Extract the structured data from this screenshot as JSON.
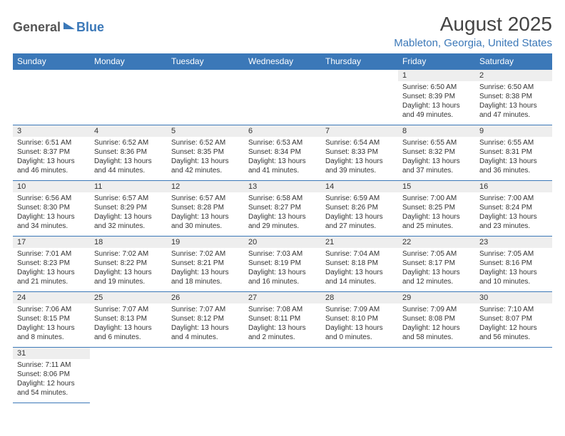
{
  "logo": {
    "general": "General",
    "blue": "Blue"
  },
  "title": "August 2025",
  "location": "Mableton, Georgia, United States",
  "colors": {
    "header_bg": "#3b78b8",
    "header_text": "#ffffff",
    "daynum_bg": "#eeeeee",
    "border": "#3b78b8",
    "text": "#333333",
    "location_color": "#3b78b8"
  },
  "weekdays": [
    "Sunday",
    "Monday",
    "Tuesday",
    "Wednesday",
    "Thursday",
    "Friday",
    "Saturday"
  ],
  "weeks": [
    [
      null,
      null,
      null,
      null,
      null,
      {
        "n": "1",
        "sr": "Sunrise: 6:50 AM",
        "ss": "Sunset: 8:39 PM",
        "d1": "Daylight: 13 hours",
        "d2": "and 49 minutes."
      },
      {
        "n": "2",
        "sr": "Sunrise: 6:50 AM",
        "ss": "Sunset: 8:38 PM",
        "d1": "Daylight: 13 hours",
        "d2": "and 47 minutes."
      }
    ],
    [
      {
        "n": "3",
        "sr": "Sunrise: 6:51 AM",
        "ss": "Sunset: 8:37 PM",
        "d1": "Daylight: 13 hours",
        "d2": "and 46 minutes."
      },
      {
        "n": "4",
        "sr": "Sunrise: 6:52 AM",
        "ss": "Sunset: 8:36 PM",
        "d1": "Daylight: 13 hours",
        "d2": "and 44 minutes."
      },
      {
        "n": "5",
        "sr": "Sunrise: 6:52 AM",
        "ss": "Sunset: 8:35 PM",
        "d1": "Daylight: 13 hours",
        "d2": "and 42 minutes."
      },
      {
        "n": "6",
        "sr": "Sunrise: 6:53 AM",
        "ss": "Sunset: 8:34 PM",
        "d1": "Daylight: 13 hours",
        "d2": "and 41 minutes."
      },
      {
        "n": "7",
        "sr": "Sunrise: 6:54 AM",
        "ss": "Sunset: 8:33 PM",
        "d1": "Daylight: 13 hours",
        "d2": "and 39 minutes."
      },
      {
        "n": "8",
        "sr": "Sunrise: 6:55 AM",
        "ss": "Sunset: 8:32 PM",
        "d1": "Daylight: 13 hours",
        "d2": "and 37 minutes."
      },
      {
        "n": "9",
        "sr": "Sunrise: 6:55 AM",
        "ss": "Sunset: 8:31 PM",
        "d1": "Daylight: 13 hours",
        "d2": "and 36 minutes."
      }
    ],
    [
      {
        "n": "10",
        "sr": "Sunrise: 6:56 AM",
        "ss": "Sunset: 8:30 PM",
        "d1": "Daylight: 13 hours",
        "d2": "and 34 minutes."
      },
      {
        "n": "11",
        "sr": "Sunrise: 6:57 AM",
        "ss": "Sunset: 8:29 PM",
        "d1": "Daylight: 13 hours",
        "d2": "and 32 minutes."
      },
      {
        "n": "12",
        "sr": "Sunrise: 6:57 AM",
        "ss": "Sunset: 8:28 PM",
        "d1": "Daylight: 13 hours",
        "d2": "and 30 minutes."
      },
      {
        "n": "13",
        "sr": "Sunrise: 6:58 AM",
        "ss": "Sunset: 8:27 PM",
        "d1": "Daylight: 13 hours",
        "d2": "and 29 minutes."
      },
      {
        "n": "14",
        "sr": "Sunrise: 6:59 AM",
        "ss": "Sunset: 8:26 PM",
        "d1": "Daylight: 13 hours",
        "d2": "and 27 minutes."
      },
      {
        "n": "15",
        "sr": "Sunrise: 7:00 AM",
        "ss": "Sunset: 8:25 PM",
        "d1": "Daylight: 13 hours",
        "d2": "and 25 minutes."
      },
      {
        "n": "16",
        "sr": "Sunrise: 7:00 AM",
        "ss": "Sunset: 8:24 PM",
        "d1": "Daylight: 13 hours",
        "d2": "and 23 minutes."
      }
    ],
    [
      {
        "n": "17",
        "sr": "Sunrise: 7:01 AM",
        "ss": "Sunset: 8:23 PM",
        "d1": "Daylight: 13 hours",
        "d2": "and 21 minutes."
      },
      {
        "n": "18",
        "sr": "Sunrise: 7:02 AM",
        "ss": "Sunset: 8:22 PM",
        "d1": "Daylight: 13 hours",
        "d2": "and 19 minutes."
      },
      {
        "n": "19",
        "sr": "Sunrise: 7:02 AM",
        "ss": "Sunset: 8:21 PM",
        "d1": "Daylight: 13 hours",
        "d2": "and 18 minutes."
      },
      {
        "n": "20",
        "sr": "Sunrise: 7:03 AM",
        "ss": "Sunset: 8:19 PM",
        "d1": "Daylight: 13 hours",
        "d2": "and 16 minutes."
      },
      {
        "n": "21",
        "sr": "Sunrise: 7:04 AM",
        "ss": "Sunset: 8:18 PM",
        "d1": "Daylight: 13 hours",
        "d2": "and 14 minutes."
      },
      {
        "n": "22",
        "sr": "Sunrise: 7:05 AM",
        "ss": "Sunset: 8:17 PM",
        "d1": "Daylight: 13 hours",
        "d2": "and 12 minutes."
      },
      {
        "n": "23",
        "sr": "Sunrise: 7:05 AM",
        "ss": "Sunset: 8:16 PM",
        "d1": "Daylight: 13 hours",
        "d2": "and 10 minutes."
      }
    ],
    [
      {
        "n": "24",
        "sr": "Sunrise: 7:06 AM",
        "ss": "Sunset: 8:15 PM",
        "d1": "Daylight: 13 hours",
        "d2": "and 8 minutes."
      },
      {
        "n": "25",
        "sr": "Sunrise: 7:07 AM",
        "ss": "Sunset: 8:13 PM",
        "d1": "Daylight: 13 hours",
        "d2": "and 6 minutes."
      },
      {
        "n": "26",
        "sr": "Sunrise: 7:07 AM",
        "ss": "Sunset: 8:12 PM",
        "d1": "Daylight: 13 hours",
        "d2": "and 4 minutes."
      },
      {
        "n": "27",
        "sr": "Sunrise: 7:08 AM",
        "ss": "Sunset: 8:11 PM",
        "d1": "Daylight: 13 hours",
        "d2": "and 2 minutes."
      },
      {
        "n": "28",
        "sr": "Sunrise: 7:09 AM",
        "ss": "Sunset: 8:10 PM",
        "d1": "Daylight: 13 hours",
        "d2": "and 0 minutes."
      },
      {
        "n": "29",
        "sr": "Sunrise: 7:09 AM",
        "ss": "Sunset: 8:08 PM",
        "d1": "Daylight: 12 hours",
        "d2": "and 58 minutes."
      },
      {
        "n": "30",
        "sr": "Sunrise: 7:10 AM",
        "ss": "Sunset: 8:07 PM",
        "d1": "Daylight: 12 hours",
        "d2": "and 56 minutes."
      }
    ],
    [
      {
        "n": "31",
        "sr": "Sunrise: 7:11 AM",
        "ss": "Sunset: 8:06 PM",
        "d1": "Daylight: 12 hours",
        "d2": "and 54 minutes."
      },
      null,
      null,
      null,
      null,
      null,
      null
    ]
  ]
}
